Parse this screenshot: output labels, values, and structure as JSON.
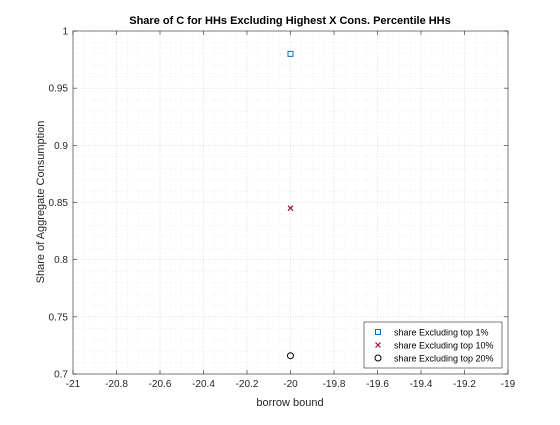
{
  "chart_data": {
    "type": "scatter",
    "title": "Share of C for HHs Excluding Highest X Cons. Percentile HHs",
    "xlabel": "borrow bound",
    "ylabel": "Share of Aggregate Consumption",
    "xlim": [
      -21,
      -19
    ],
    "ylim": [
      0.7,
      1
    ],
    "xticks": [
      -21,
      -20.8,
      -20.6,
      -20.4,
      -20.2,
      -20,
      -19.8,
      -19.6,
      -19.4,
      -19.2,
      -19
    ],
    "xtick_labels": [
      "-21",
      "-20.8",
      "-20.6",
      "-20.4",
      "-20.2",
      "-20",
      "-19.8",
      "-19.6",
      "-19.4",
      "-19.2",
      "-19"
    ],
    "yticks": [
      0.7,
      0.75,
      0.8,
      0.85,
      0.9,
      0.95,
      1
    ],
    "ytick_labels": [
      "0.7",
      "0.75",
      "0.8",
      "0.85",
      "0.9",
      "0.95",
      "1"
    ],
    "grid": true,
    "minor_grid": true,
    "legend_position": "bottom-right",
    "series": [
      {
        "name": "share Excluding top 1%",
        "marker": "square",
        "color": "#0072BD",
        "points": [
          {
            "x": -20,
            "y": 0.98
          }
        ]
      },
      {
        "name": "share Excluding top 10%",
        "marker": "x",
        "color": "#A2142F",
        "points": [
          {
            "x": -20,
            "y": 0.845
          }
        ]
      },
      {
        "name": "share Excluding top 20%",
        "marker": "circle",
        "color": "#000000",
        "points": [
          {
            "x": -20,
            "y": 0.716
          }
        ]
      }
    ]
  }
}
